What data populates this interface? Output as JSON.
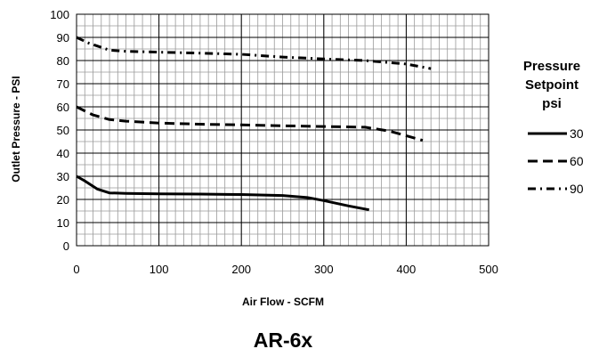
{
  "chart_data": {
    "type": "line",
    "title": "AR-6x",
    "xlabel": "Air Flow - SCFM",
    "ylabel": "Outlet Pressure - PSI",
    "xlim": [
      0,
      500
    ],
    "ylim": [
      0,
      100
    ],
    "x_ticks": [
      0,
      100,
      200,
      300,
      400,
      500
    ],
    "y_ticks": [
      0,
      10,
      20,
      30,
      40,
      50,
      60,
      70,
      80,
      90,
      100
    ],
    "grid": true,
    "legend": {
      "placement": "right",
      "title_lines": [
        "Pressure",
        "Setpoint",
        "psi"
      ]
    },
    "series": [
      {
        "name": "30",
        "style": "solid",
        "color": "#000000",
        "points": [
          [
            0,
            30
          ],
          [
            10,
            28
          ],
          [
            25,
            24.5
          ],
          [
            40,
            22.8
          ],
          [
            60,
            22.6
          ],
          [
            100,
            22.4
          ],
          [
            150,
            22.3
          ],
          [
            200,
            22.1
          ],
          [
            250,
            21.7
          ],
          [
            280,
            20.8
          ],
          [
            300,
            19.5
          ],
          [
            330,
            17.2
          ],
          [
            355,
            15.5
          ]
        ]
      },
      {
        "name": "60",
        "style": "dash",
        "color": "#000000",
        "points": [
          [
            0,
            60
          ],
          [
            20,
            56.5
          ],
          [
            40,
            54.5
          ],
          [
            60,
            53.8
          ],
          [
            100,
            53
          ],
          [
            150,
            52.5
          ],
          [
            200,
            52.2
          ],
          [
            250,
            51.8
          ],
          [
            300,
            51.5
          ],
          [
            350,
            51.2
          ],
          [
            380,
            49.5
          ],
          [
            420,
            45.5
          ]
        ]
      },
      {
        "name": "90",
        "style": "dashdot",
        "color": "#000000",
        "points": [
          [
            0,
            90
          ],
          [
            15,
            87.5
          ],
          [
            40,
            84.5
          ],
          [
            60,
            84
          ],
          [
            100,
            83.6
          ],
          [
            150,
            83.2
          ],
          [
            200,
            82.7
          ],
          [
            250,
            81.5
          ],
          [
            300,
            80.7
          ],
          [
            350,
            80
          ],
          [
            400,
            78.5
          ],
          [
            430,
            76.5
          ]
        ]
      }
    ]
  }
}
